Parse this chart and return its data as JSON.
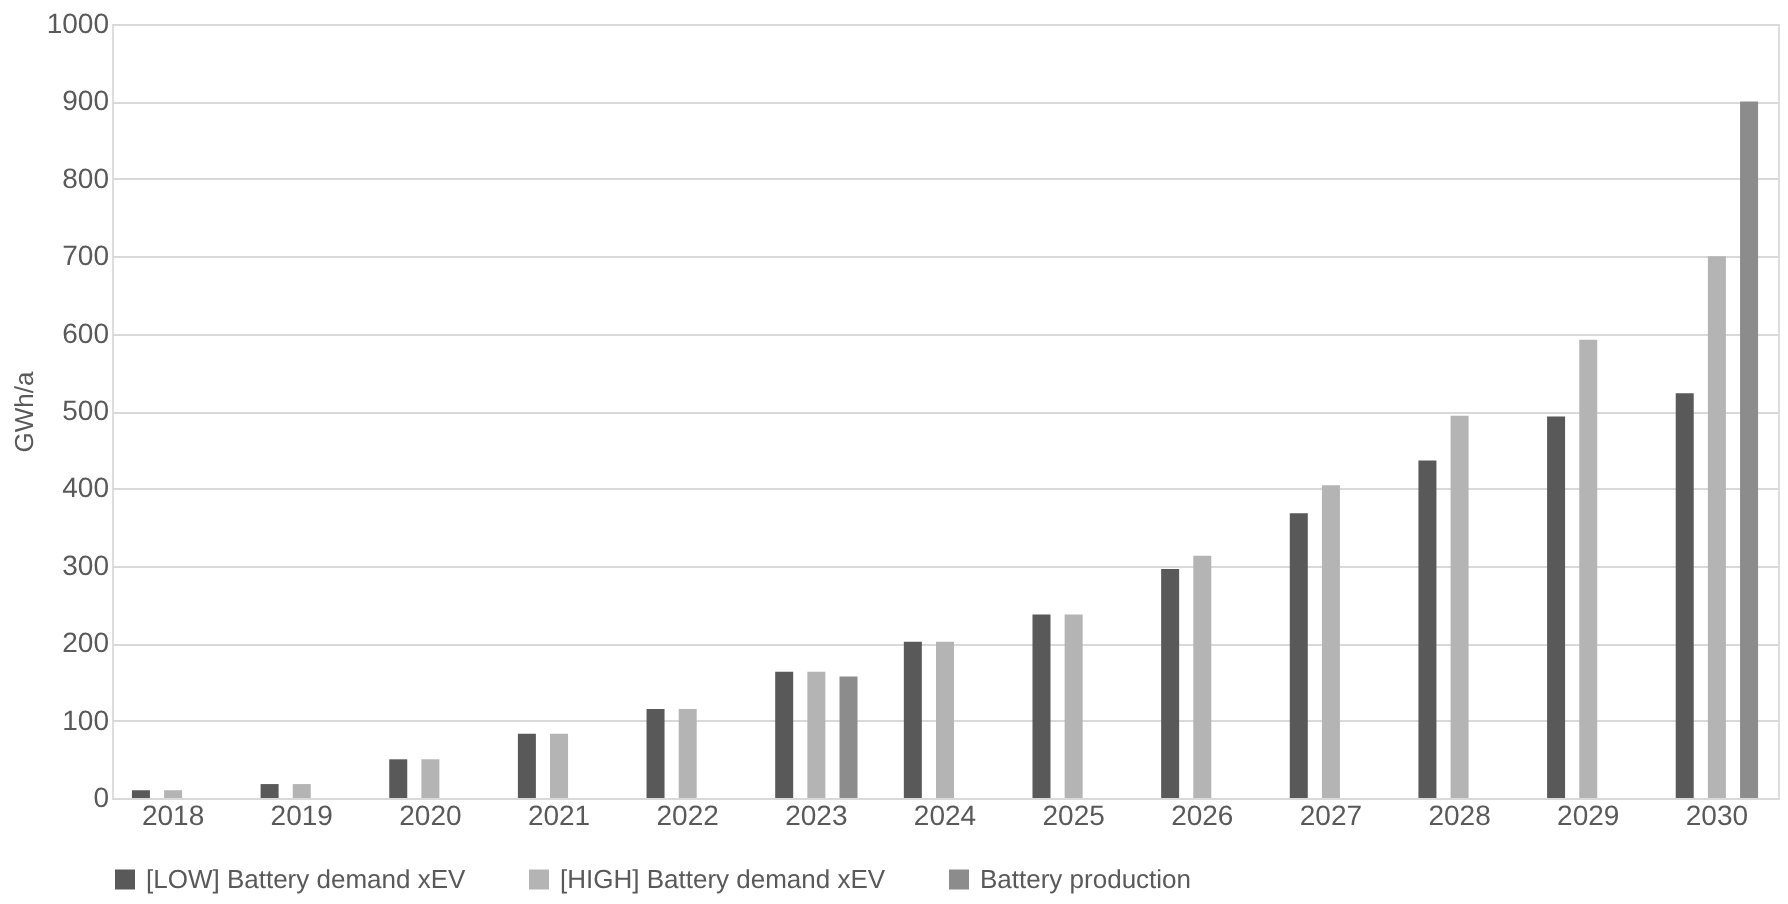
{
  "chart_data": {
    "type": "bar",
    "ylabel": "GWh/a",
    "categories": [
      "2018",
      "2019",
      "2020",
      "2021",
      "2022",
      "2023",
      "2024",
      "2025",
      "2026",
      "2027",
      "2028",
      "2029",
      "2030"
    ],
    "series": [
      {
        "name": "[LOW] Battery demand xEV",
        "color": "#595959",
        "values": [
          10,
          18,
          50,
          83,
          115,
          163,
          202,
          237,
          296,
          368,
          436,
          493,
          523
        ]
      },
      {
        "name": "[HIGH] Battery demand xEV",
        "color": "#b4b4b4",
        "values": [
          10,
          18,
          50,
          83,
          115,
          163,
          202,
          237,
          313,
          404,
          494,
          592,
          700
        ]
      },
      {
        "name": "Battery production",
        "color": "#8c8c8c",
        "values": [
          null,
          null,
          null,
          null,
          null,
          157,
          null,
          null,
          null,
          null,
          null,
          null,
          900
        ]
      }
    ],
    "ylim": [
      0,
      1000
    ],
    "yticks": [
      0,
      100,
      200,
      300,
      400,
      500,
      600,
      700,
      800,
      900,
      1000
    ],
    "grid": "y",
    "legend": "bottom"
  }
}
